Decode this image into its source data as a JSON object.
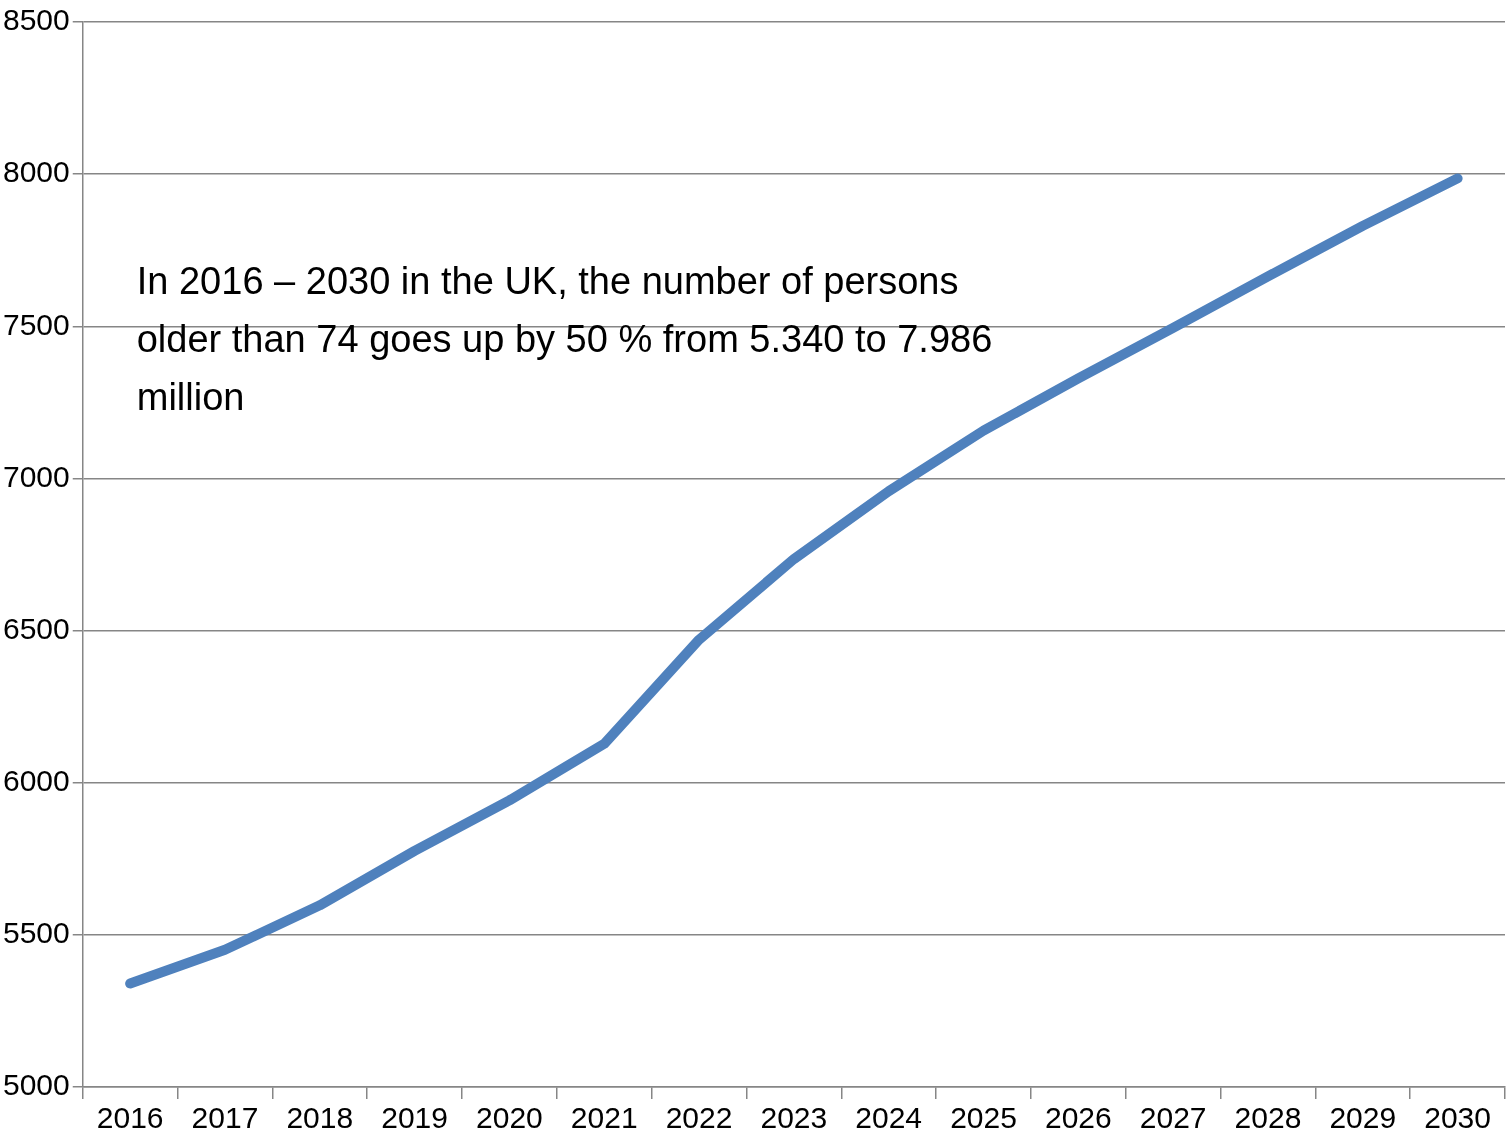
{
  "chart_data": {
    "type": "line",
    "categories": [
      "2016",
      "2017",
      "2018",
      "2019",
      "2020",
      "2021",
      "2022",
      "2023",
      "2024",
      "2025",
      "2026",
      "2027",
      "2028",
      "2029",
      "2030"
    ],
    "series": [
      {
        "color": "#4f81bd",
        "values": [
          5340,
          5451,
          5597,
          5776,
          5942,
          6128,
          6470,
          6735,
          6958,
          7157,
          7329,
          7495,
          7664,
          7830,
          7986
        ]
      }
    ],
    "ylim": [
      5000,
      8500
    ],
    "yticks": [
      5000,
      5500,
      6000,
      6500,
      7000,
      7500,
      8000,
      8500
    ],
    "grid": "y",
    "legend": false,
    "marker": "none",
    "line_style": "solid",
    "annotations": [
      "In 2016 – 2030 in the UK, the number of persons older than 74 goes up by 50 % from 5.340 to 7.986 million"
    ]
  }
}
